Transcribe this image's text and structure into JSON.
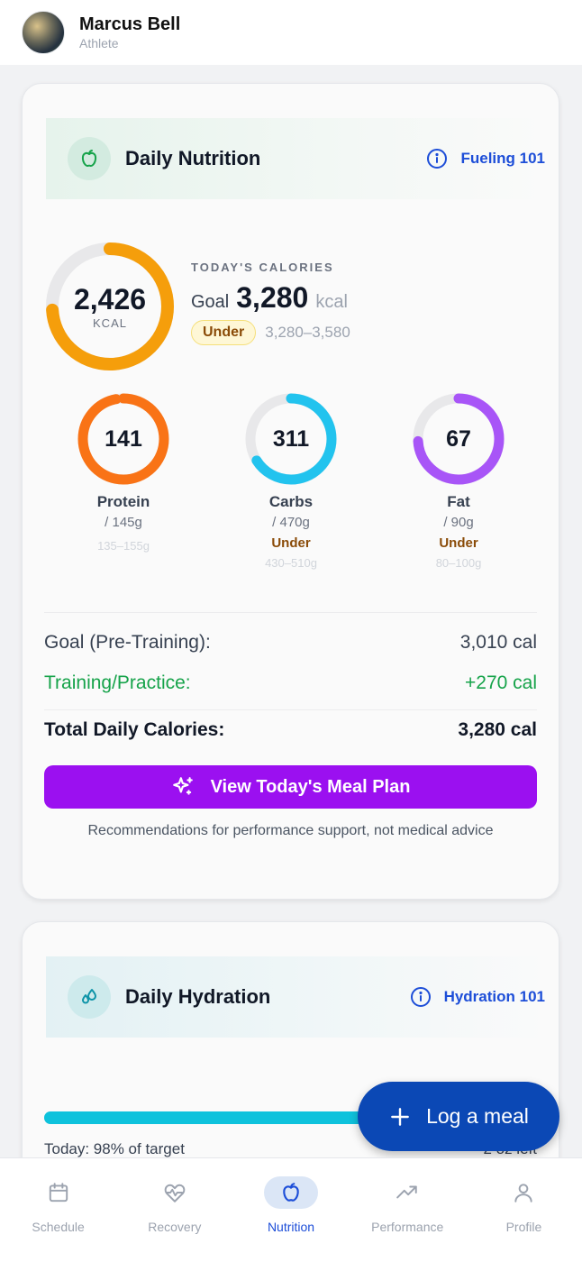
{
  "header": {
    "user_name": "Marcus Bell",
    "user_role": "Athlete"
  },
  "nutrition_card": {
    "title": "Daily Nutrition",
    "info_link": "Fueling 101",
    "calories": {
      "value": "2,426",
      "unit": "KCAL",
      "label": "TODAY'S CALORIES",
      "goal_word": "Goal",
      "goal_value": "3,280",
      "goal_unit": "kcal",
      "status": "Under",
      "range": "3,280–3,580",
      "progress": 0.74,
      "color": "#f59e0b"
    },
    "macros": [
      {
        "value": "141",
        "name": "Protein",
        "goal": "/ 145g",
        "status": "",
        "range": "135–155g",
        "progress": 0.97,
        "color": "#f97316"
      },
      {
        "value": "311",
        "name": "Carbs",
        "goal": "/ 470g",
        "status": "Under",
        "range": "430–510g",
        "progress": 0.66,
        "color": "#22c3ee"
      },
      {
        "value": "67",
        "name": "Fat",
        "goal": "/ 90g",
        "status": "Under",
        "range": "80–100g",
        "progress": 0.74,
        "color": "#a855f7"
      }
    ],
    "breakdown": {
      "goal_label": "Goal (Pre-Training):",
      "goal_value": "3,010 cal",
      "training_label": "Training/Practice:",
      "training_value": "+270 cal",
      "total_label": "Total Daily Calories:",
      "total_value": "3,280 cal"
    },
    "meal_plan_button": "View Today's Meal Plan",
    "disclaimer": "Recommendations for performance support, not medical advice"
  },
  "hydration_card": {
    "title": "Daily Hydration",
    "info_link": "Hydration 101",
    "progress": 0.98,
    "today_text": "Today: 98% of target",
    "left_text": "2 oz left",
    "color": "#0ec2dc"
  },
  "fab": {
    "label": "Log a meal"
  },
  "bottom_nav": [
    {
      "label": "Schedule",
      "icon": "calendar-icon",
      "active": false
    },
    {
      "label": "Recovery",
      "icon": "heart-pulse-icon",
      "active": false
    },
    {
      "label": "Nutrition",
      "icon": "apple-icon",
      "active": true
    },
    {
      "label": "Performance",
      "icon": "trending-up-icon",
      "active": false
    },
    {
      "label": "Profile",
      "icon": "user-icon",
      "active": false
    }
  ]
}
